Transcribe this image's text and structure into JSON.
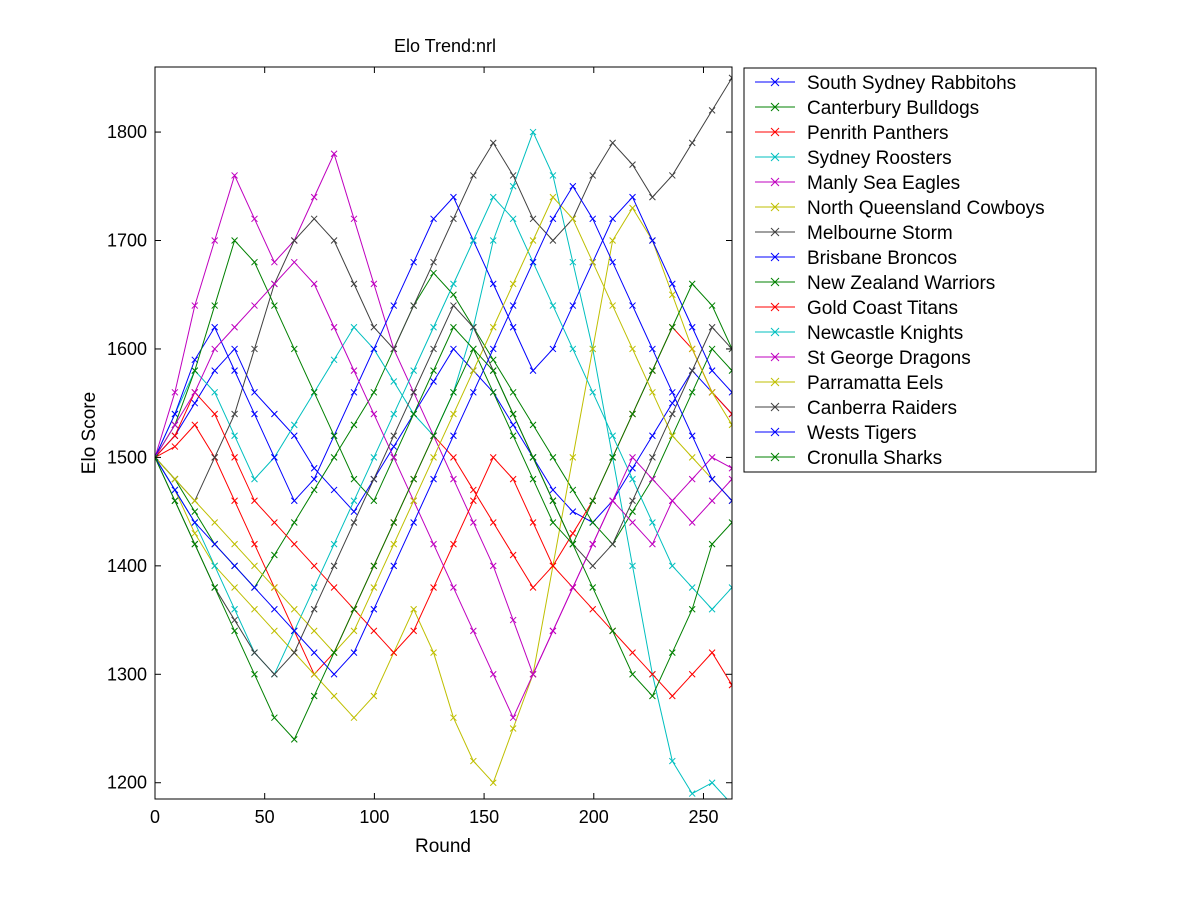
{
  "chart_data": {
    "type": "line",
    "title": "Elo Trend:nrl",
    "xlabel": "Round",
    "ylabel": "Elo Score",
    "xlim": [
      0,
      263
    ],
    "ylim": [
      1185,
      1860
    ],
    "xticks": [
      0,
      50,
      100,
      150,
      200,
      250
    ],
    "yticks": [
      1200,
      1300,
      1400,
      1500,
      1600,
      1700,
      1800
    ],
    "grid": false,
    "marker": "x",
    "legend_position": "outside-right",
    "series": [
      {
        "name": "South Sydney Rabbitohs",
        "color": "#0000ff",
        "values": [
          1500,
          1520,
          1550,
          1580,
          1600,
          1560,
          1540,
          1520,
          1490,
          1470,
          1450,
          1480,
          1510,
          1540,
          1570,
          1600,
          1580,
          1560,
          1530,
          1500,
          1470,
          1450,
          1440,
          1460,
          1490,
          1520,
          1550,
          1580,
          1560,
          1540
        ]
      },
      {
        "name": "Canterbury Bulldogs",
        "color": "#008000",
        "values": [
          1500,
          1480,
          1450,
          1420,
          1400,
          1380,
          1410,
          1440,
          1470,
          1500,
          1530,
          1560,
          1600,
          1640,
          1670,
          1650,
          1620,
          1590,
          1560,
          1530,
          1500,
          1470,
          1440,
          1420,
          1450,
          1480,
          1520,
          1560,
          1600,
          1580
        ]
      },
      {
        "name": "Penrith Panthers",
        "color": "#ff0000",
        "values": [
          1500,
          1510,
          1530,
          1500,
          1460,
          1420,
          1380,
          1340,
          1300,
          1320,
          1360,
          1400,
          1440,
          1480,
          1520,
          1500,
          1470,
          1440,
          1410,
          1380,
          1400,
          1430,
          1460,
          1500,
          1540,
          1580,
          1620,
          1600,
          1560,
          1540
        ]
      },
      {
        "name": "Sydney Roosters",
        "color": "#00bfbf",
        "values": [
          1500,
          1540,
          1580,
          1560,
          1520,
          1480,
          1500,
          1530,
          1560,
          1590,
          1620,
          1600,
          1570,
          1540,
          1520,
          1560,
          1620,
          1700,
          1750,
          1800,
          1760,
          1680,
          1600,
          1500,
          1400,
          1300,
          1220,
          1190,
          1200,
          1180
        ]
      },
      {
        "name": "Manly Sea Eagles",
        "color": "#bf00bf",
        "values": [
          1500,
          1560,
          1640,
          1700,
          1760,
          1720,
          1680,
          1700,
          1740,
          1780,
          1720,
          1660,
          1600,
          1560,
          1520,
          1480,
          1440,
          1400,
          1350,
          1300,
          1340,
          1380,
          1420,
          1460,
          1440,
          1420,
          1460,
          1480,
          1500,
          1490
        ]
      },
      {
        "name": "North Queensland Cowboys",
        "color": "#bfbf00",
        "values": [
          1500,
          1470,
          1430,
          1400,
          1380,
          1360,
          1340,
          1320,
          1300,
          1280,
          1260,
          1280,
          1320,
          1360,
          1320,
          1260,
          1220,
          1200,
          1250,
          1300,
          1400,
          1500,
          1600,
          1700,
          1730,
          1700,
          1650,
          1600,
          1560,
          1530
        ]
      },
      {
        "name": "Melbourne Storm",
        "color": "#404040",
        "values": [
          1500,
          1480,
          1460,
          1500,
          1540,
          1600,
          1660,
          1700,
          1720,
          1700,
          1660,
          1620,
          1600,
          1640,
          1680,
          1720,
          1760,
          1790,
          1760,
          1720,
          1700,
          1720,
          1760,
          1790,
          1770,
          1740,
          1760,
          1790,
          1820,
          1850
        ]
      },
      {
        "name": "Brisbane Broncos",
        "color": "#0000ff",
        "values": [
          1500,
          1540,
          1590,
          1620,
          1580,
          1540,
          1500,
          1460,
          1480,
          1520,
          1560,
          1600,
          1640,
          1680,
          1720,
          1740,
          1700,
          1660,
          1620,
          1580,
          1600,
          1640,
          1680,
          1720,
          1740,
          1700,
          1660,
          1620,
          1580,
          1560
        ]
      },
      {
        "name": "New Zealand Warriors",
        "color": "#008000",
        "values": [
          1500,
          1530,
          1580,
          1640,
          1700,
          1680,
          1640,
          1600,
          1560,
          1520,
          1480,
          1460,
          1500,
          1540,
          1580,
          1620,
          1600,
          1560,
          1520,
          1480,
          1440,
          1420,
          1460,
          1500,
          1540,
          1580,
          1620,
          1660,
          1640,
          1600
        ]
      },
      {
        "name": "Gold Coast Titans",
        "color": "#ff0000",
        "values": [
          1500,
          1520,
          1560,
          1540,
          1500,
          1460,
          1440,
          1420,
          1400,
          1380,
          1360,
          1340,
          1320,
          1340,
          1380,
          1420,
          1460,
          1500,
          1480,
          1440,
          1400,
          1380,
          1360,
          1340,
          1320,
          1300,
          1280,
          1300,
          1320,
          1290
        ]
      },
      {
        "name": "Newcastle Knights",
        "color": "#00bfbf",
        "values": [
          1500,
          1470,
          1440,
          1400,
          1360,
          1320,
          1300,
          1340,
          1380,
          1420,
          1460,
          1500,
          1540,
          1580,
          1620,
          1660,
          1700,
          1740,
          1720,
          1680,
          1640,
          1600,
          1560,
          1520,
          1480,
          1440,
          1400,
          1380,
          1360,
          1380
        ]
      },
      {
        "name": "St George Dragons",
        "color": "#bf00bf",
        "values": [
          1500,
          1530,
          1560,
          1600,
          1620,
          1640,
          1660,
          1680,
          1660,
          1620,
          1580,
          1540,
          1500,
          1460,
          1420,
          1380,
          1340,
          1300,
          1260,
          1300,
          1340,
          1380,
          1420,
          1460,
          1500,
          1480,
          1460,
          1440,
          1460,
          1480
        ]
      },
      {
        "name": "Parramatta Eels",
        "color": "#bfbf00",
        "values": [
          1500,
          1480,
          1460,
          1440,
          1420,
          1400,
          1380,
          1360,
          1340,
          1320,
          1340,
          1380,
          1420,
          1460,
          1500,
          1540,
          1580,
          1620,
          1660,
          1700,
          1740,
          1720,
          1680,
          1640,
          1600,
          1560,
          1520,
          1500,
          1480,
          1460
        ]
      },
      {
        "name": "Canberra Raiders",
        "color": "#404040",
        "values": [
          1500,
          1460,
          1420,
          1380,
          1350,
          1320,
          1300,
          1320,
          1360,
          1400,
          1440,
          1480,
          1520,
          1560,
          1600,
          1640,
          1620,
          1580,
          1540,
          1500,
          1460,
          1420,
          1400,
          1420,
          1460,
          1500,
          1540,
          1580,
          1620,
          1600
        ]
      },
      {
        "name": "Wests Tigers",
        "color": "#0000ff",
        "values": [
          1500,
          1470,
          1440,
          1420,
          1400,
          1380,
          1360,
          1340,
          1320,
          1300,
          1320,
          1360,
          1400,
          1440,
          1480,
          1520,
          1560,
          1600,
          1640,
          1680,
          1720,
          1750,
          1720,
          1680,
          1640,
          1600,
          1560,
          1520,
          1480,
          1460
        ]
      },
      {
        "name": "Cronulla Sharks",
        "color": "#008000",
        "values": [
          1500,
          1460,
          1420,
          1380,
          1340,
          1300,
          1260,
          1240,
          1280,
          1320,
          1360,
          1400,
          1440,
          1480,
          1520,
          1560,
          1600,
          1580,
          1540,
          1500,
          1460,
          1420,
          1380,
          1340,
          1300,
          1280,
          1320,
          1360,
          1420,
          1440
        ]
      }
    ]
  }
}
